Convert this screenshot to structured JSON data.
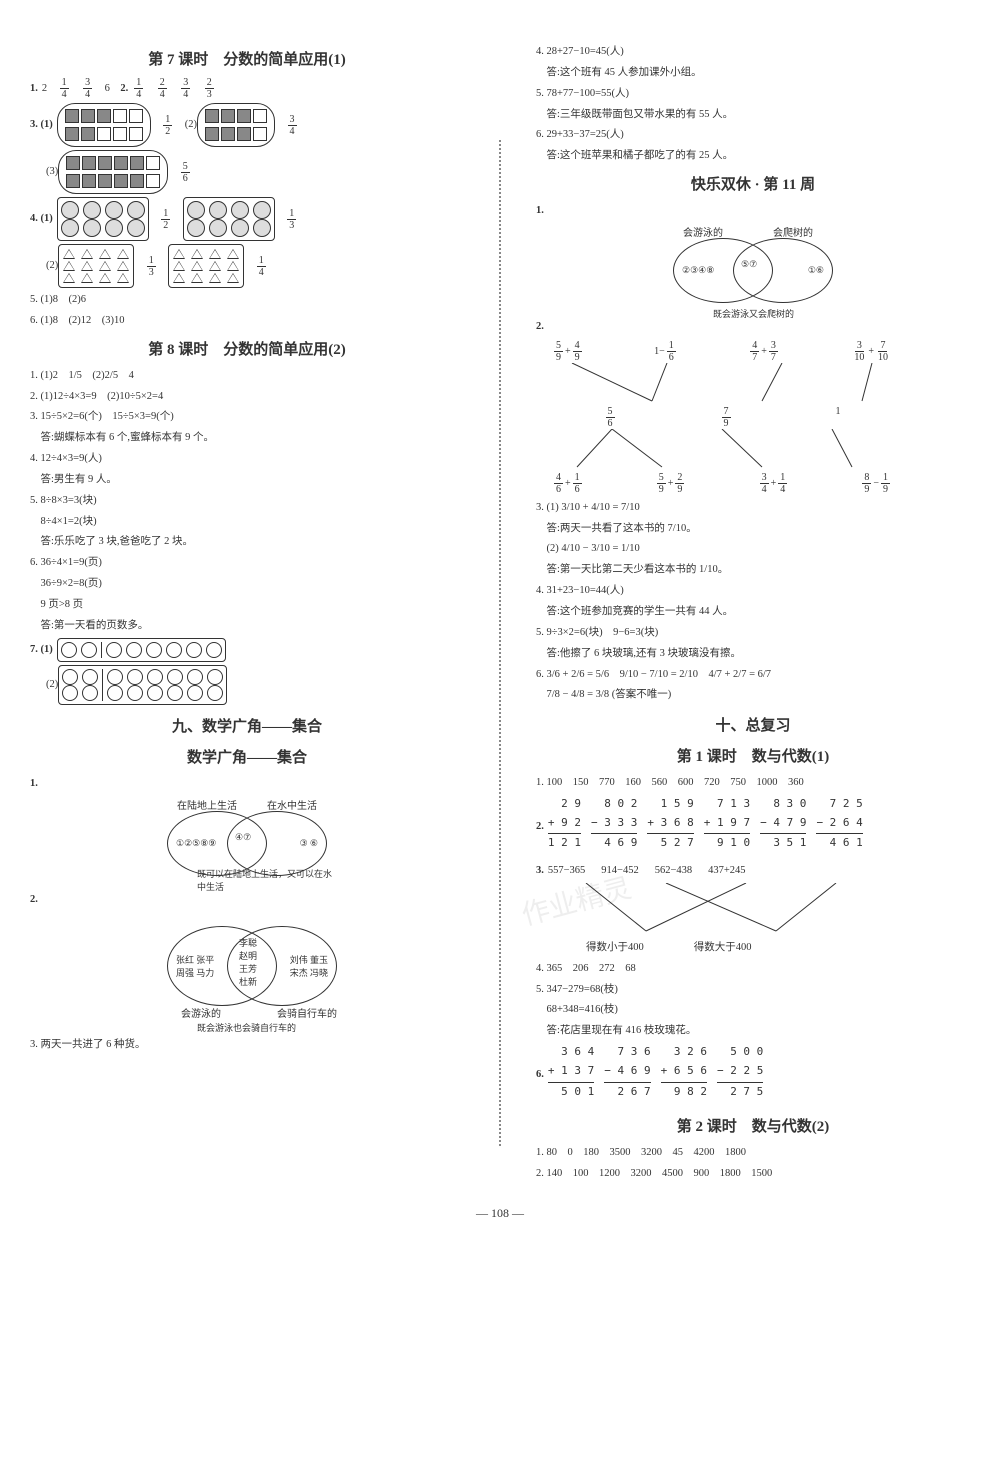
{
  "left": {
    "h7": "第 7 课时　分数的简单应用(1)",
    "q1": {
      "pre": "1.",
      "vals": [
        "2",
        " ",
        "1/4",
        " ",
        "3/4",
        " ",
        "6"
      ]
    },
    "q1b": {
      "pre": "2.",
      "fr": [
        "1/4",
        "2/4",
        "3/4",
        "2/3"
      ]
    },
    "q3": "3. (1)",
    "q3f1": "1/2",
    "q3b": "(2)",
    "q3f2": "3/4",
    "q3c": "(3)",
    "q3f3": "5/6",
    "q4": "4. (1)",
    "q4f1": "1/2",
    "q4f2": "1/3",
    "q4b": "(2)",
    "q4f3": "1/3",
    "q4f4": "1/4",
    "q5": "5. (1)8　(2)6",
    "q6": "6. (1)8　(2)12　(3)10",
    "h8": "第 8 课时　分数的简单应用(2)",
    "l8": [
      "1. (1)2　1/5　(2)2/5　4",
      "2. (1)12÷4×3=9　(2)10÷5×2=4",
      "3. 15÷5×2=6(个)　15÷5×3=9(个)",
      "　答:蝴蝶标本有 6 个,蜜蜂标本有 9 个。",
      "4. 12÷4×3=9(人)",
      "　答:男生有 9 人。",
      "5. 8÷8×3=3(块)",
      "　8÷4×1=2(块)",
      "　答:乐乐吃了 3 块,爸爸吃了 2 块。",
      "6. 36÷4×1=9(页)",
      "　36÷9×2=8(页)",
      "　9 页>8 页",
      "　答:第一天看的页数多。"
    ],
    "q7": "7. (1)",
    "q7b": "(2)",
    "h9": "九、数学广角——集合",
    "h9s": "数学广角——集合",
    "v1": {
      "la": "在陆地上生活",
      "lb": "在水中生活",
      "a": "①②⑤⑧⑨",
      "m": "④⑦",
      "b": "③ ⑥",
      "lm": "既可以在陆地上生活，又可以在水中生活"
    },
    "v2": {
      "la": "会游泳的",
      "lb": "会骑自行车的",
      "a": "张红 张平\n周强 马力",
      "m": "李聪\n赵明\n王芳\n杜新",
      "b": "刘伟 董玉\n宋杰 冯晓",
      "lm": "既会游泳也会骑自行车的"
    },
    "q3last": "3. 两天一共进了 6 种货。"
  },
  "right": {
    "top": [
      "4. 28+27−10=45(人)",
      "　答:这个班有 45 人参加课外小组。",
      "5. 78+77−100=55(人)",
      "　答:三年级既带面包又带水果的有 55 人。",
      "6. 29+33−37=25(人)",
      "　答:这个班苹果和橘子都吃了的有 25 人。"
    ],
    "h11": "快乐双休 · 第 11 周",
    "v11": {
      "la": "会游泳的",
      "lb": "会爬树的",
      "a": "②③④⑧",
      "m": "⑤⑦",
      "b": "①⑥",
      "lm": "既会游泳又会爬树的"
    },
    "tree2": {
      "top": [
        "5/9+4/9",
        "1−1/6",
        "4/7+3/7",
        "3/10+7/10"
      ],
      "mid": [
        "5/6",
        "7/9",
        "1"
      ],
      "bot": [
        "4/6+1/6",
        "5/9+2/9",
        "3/4+1/4",
        "8/9−1/9"
      ]
    },
    "q3r": [
      "3. (1) 3/10 + 4/10 = 7/10",
      "　答:两天一共看了这本书的 7/10。",
      "　(2) 4/10 − 3/10 = 1/10",
      "　答:第一天比第二天少看这本书的 1/10。",
      "4. 31+23−10=44(人)",
      "　答:这个班参加竞赛的学生一共有 44 人。",
      "5. 9÷3×2=6(块)　9−6=3(块)",
      "　答:他擦了 6 块玻璃,还有 3 块玻璃没有擦。",
      "6. 3/6 + 2/6 = 5/6　9/10 − 7/10 = 2/10　4/7 + 2/7 = 6/7",
      "　7/8 − 4/8 = 3/8 (答案不唯一)"
    ],
    "h10": "十、总复习",
    "h10s1": "第 1 课时　数与代数(1)",
    "q1nums": "1. 100　150　770　160　560　600　720　750　1000　360",
    "calc2": [
      [
        "2 9",
        "+  9 2",
        "1 2 1"
      ],
      [
        "8 0 2",
        "− 3 3 3",
        "4 6 9"
      ],
      [
        "1 5 9",
        "+ 3 6 8",
        "5 2 7"
      ],
      [
        "7 1 3",
        "+ 1 9 7",
        "9 1 0"
      ],
      [
        "8 3 0",
        "− 4 7 9",
        "3 5 1"
      ],
      [
        "7 2 5",
        "− 2 6 4",
        "4 6 1"
      ]
    ],
    "tree3": {
      "top": [
        "557−365",
        "914−452",
        "562−438",
        "437+245"
      ],
      "ba": "得数小于400",
      "bb": "得数大于400"
    },
    "q4": "4. 365　206　272　68",
    "q5": [
      "5. 347−279=68(枝)",
      "　68+348=416(枝)",
      "　答:花店里现在有 416 枝玫瑰花。"
    ],
    "calc6": [
      [
        "3 6 4",
        "+ 1 3 7",
        "5 0 1"
      ],
      [
        "7 3 6",
        "− 4 6 9",
        "2 6 7"
      ],
      [
        "3 2 6",
        "+ 6 5 6",
        "9 8 2"
      ],
      [
        "5 0 0",
        "− 2 2 5",
        "2 7 5"
      ]
    ],
    "h10s2": "第 2 课时　数与代数(2)",
    "rn": [
      "1. 80　0　180　3500　3200　45　4200　1800",
      "2. 140　100　1200　3200　4500　900　1800　1500"
    ]
  },
  "pagenum": "108"
}
